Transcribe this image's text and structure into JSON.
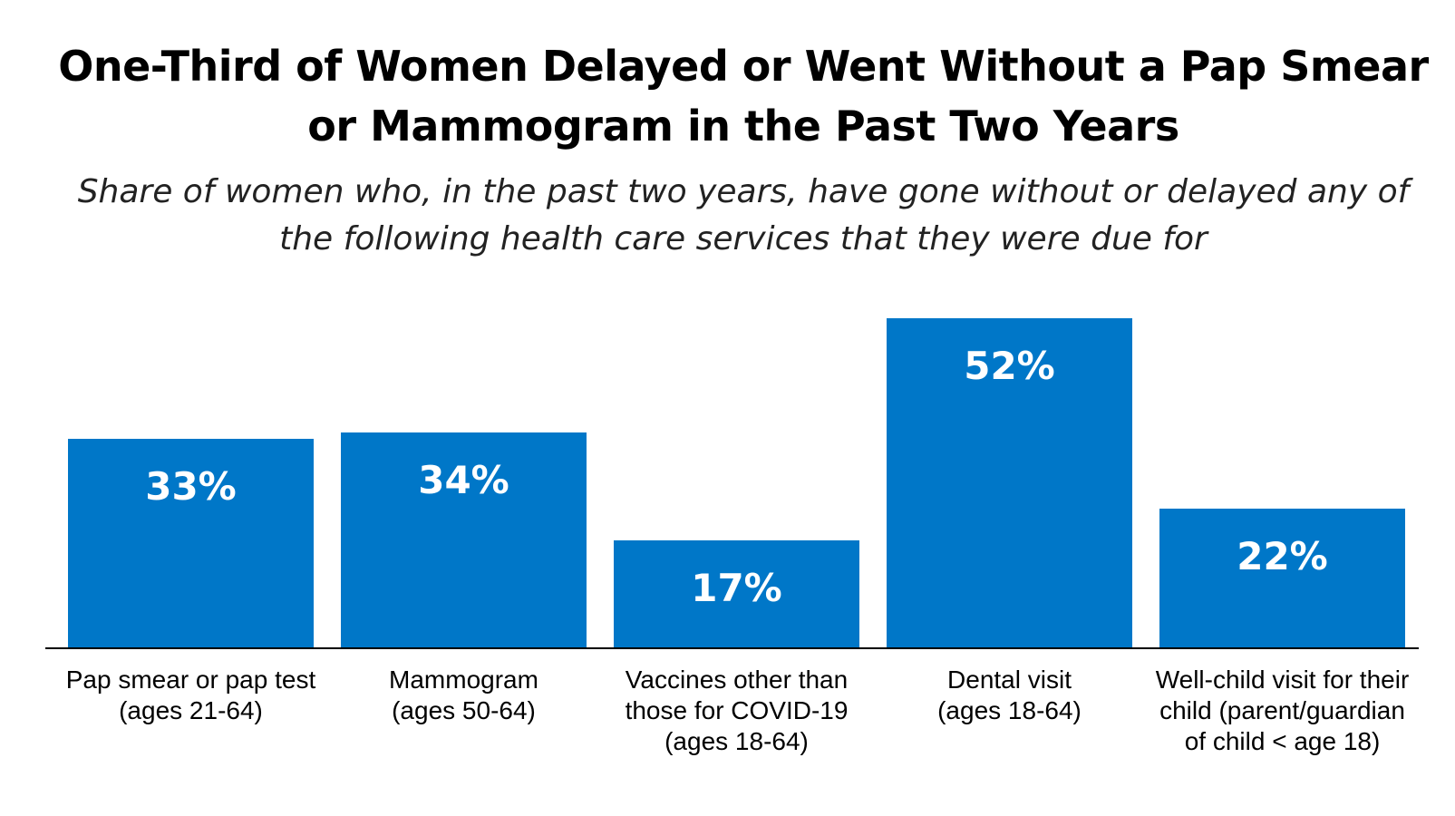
{
  "chart_data": {
    "type": "bar",
    "title": "One-Third of Women Delayed or Went Without a Pap Smear or Mammogram in the Past Two Years",
    "subtitle": "Share of women who, in the past two years, have gone without or delayed any of the following health care services that they were due for",
    "categories": [
      [
        "Pap smear or pap test",
        "(ages 21-64)"
      ],
      [
        "Mammogram",
        "(ages 50-64)"
      ],
      [
        "Vaccines other than",
        "those for COVID-19",
        "(ages 18-64)"
      ],
      [
        "Dental visit",
        "(ages 18-64)"
      ],
      [
        "Well-child visit for their",
        "child (parent/guardian",
        "of child < age 18)"
      ]
    ],
    "values": [
      33,
      34,
      17,
      52,
      22
    ],
    "data_labels": [
      "33%",
      "34%",
      "17%",
      "52%",
      "22%"
    ],
    "ylim": [
      0,
      100
    ],
    "grid": false,
    "bar_color": "#0077c8"
  }
}
